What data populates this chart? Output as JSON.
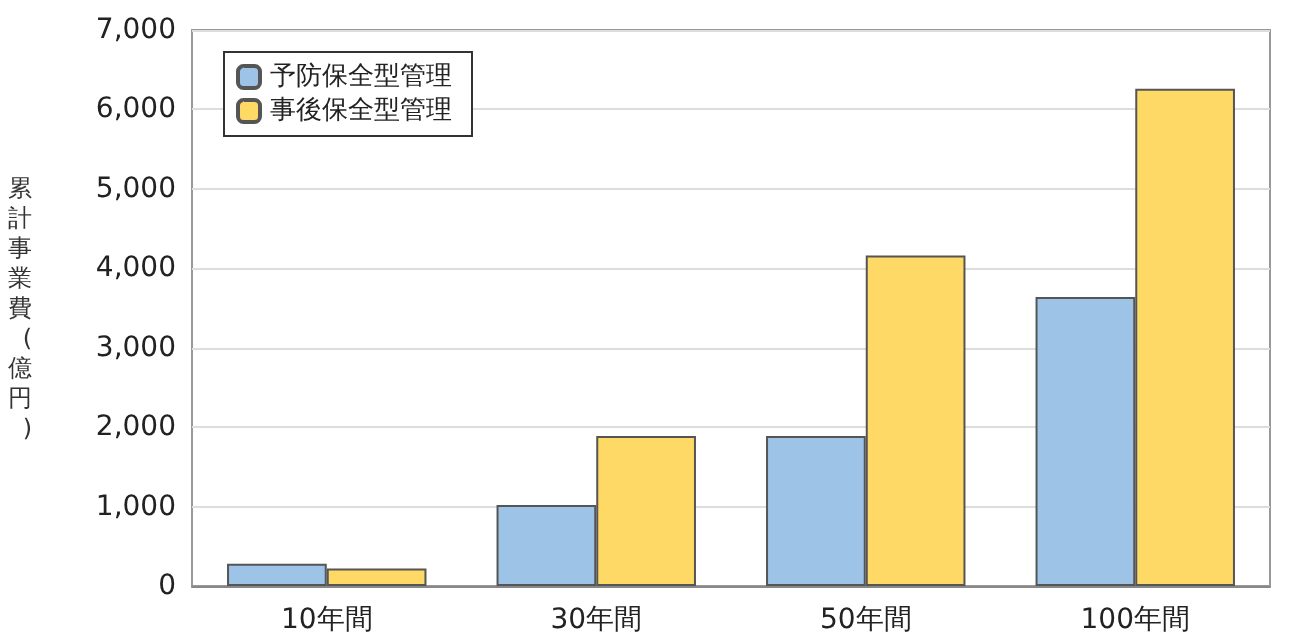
{
  "chart_data": {
    "type": "bar",
    "ylabel": "累計事業費(億円)",
    "categories": [
      "10年間",
      "30年間",
      "50年間",
      "100年間"
    ],
    "series": [
      {
        "name": "予防保全型管理",
        "color": "#9dc3e6",
        "values": [
          280,
          1020,
          1890,
          3640
        ]
      },
      {
        "name": "事後保全型管理",
        "color": "#ffd966",
        "values": [
          220,
          1890,
          4160,
          6260
        ]
      }
    ],
    "ylim": [
      0,
      7000
    ],
    "yticks": [
      {
        "value": 0,
        "label": "0"
      },
      {
        "value": 1000,
        "label": "1,000"
      },
      {
        "value": 2000,
        "label": "2,000"
      },
      {
        "value": 3000,
        "label": "3,000"
      },
      {
        "value": 4000,
        "label": "4,000"
      },
      {
        "value": 5000,
        "label": "5,000"
      },
      {
        "value": 6000,
        "label": "6,000"
      },
      {
        "value": 7000,
        "label": "7,000"
      }
    ],
    "grid": "y",
    "legend": "top left"
  }
}
